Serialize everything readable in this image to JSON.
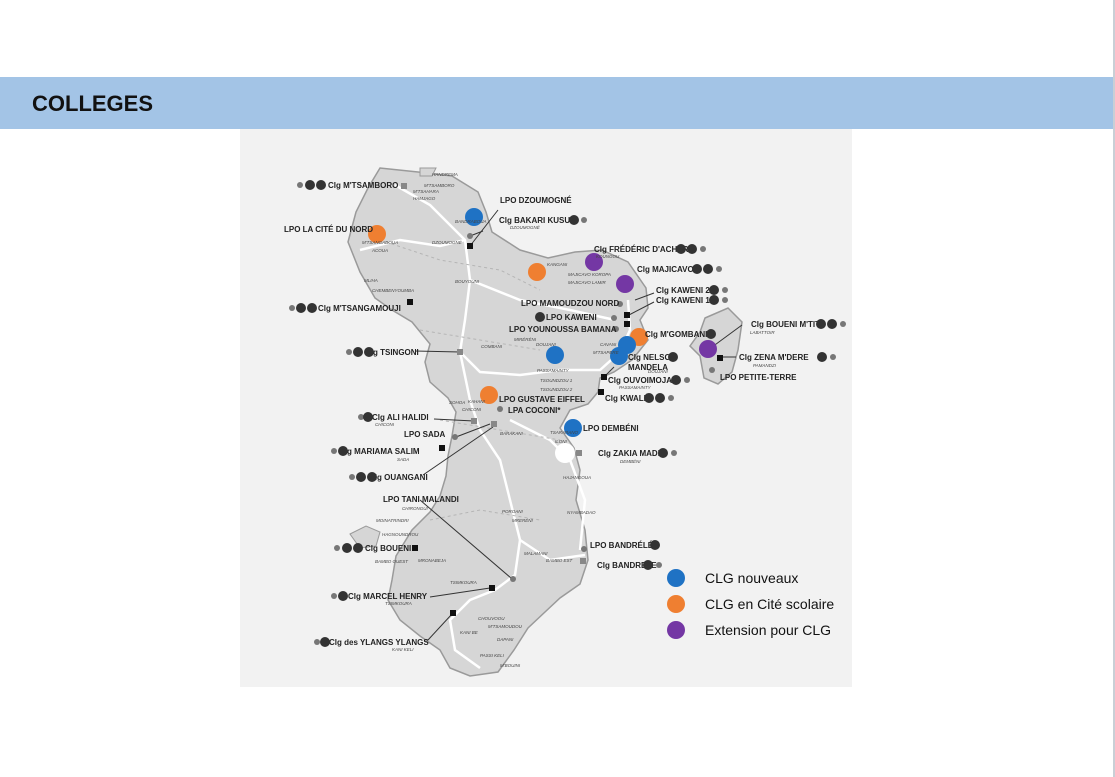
{
  "header": {
    "title": "COLLEGES"
  },
  "legend": [
    {
      "label": "CLG nouveaux",
      "color": "#1f72c4"
    },
    {
      "label": "CLG en Cité scolaire",
      "color": "#ef7f31"
    },
    {
      "label": "Extension pour CLG",
      "color": "#7437a4"
    }
  ],
  "colors": {
    "banner": "#a3c4e6",
    "land": "#dcdcdc",
    "blue": "#1f72c4",
    "orange": "#ef7f31",
    "purple": "#7437a4"
  },
  "map": {
    "labels": {
      "clg_mtsamboro": "Clg M'TSAMBORO",
      "lpo_dzoumogne": "LPO DZOUMOGNÉ",
      "clg_bakari_kusu": "Clg BAKARI KUSU",
      "lpo_cite_du_nord": "LPO LA CITÉ DU NORD",
      "clg_frederic_dachery": "Clg FRÉDÉRIC D'ACHERY",
      "clg_majicavo": "Clg MAJICAVO",
      "clg_kaweni_2": "Clg KAWENI 2",
      "clg_kaweni_1": "Clg KAWENI 1",
      "lpo_mamoudzou_nord": "LPO MAMOUDZOU NORD",
      "lpo_kaweni": "LPO KAWENI",
      "lpo_younoussa_bamana": "LPO YOUNOUSSA BAMANA",
      "clg_mtsangamouji": "Clg M'TSANGAMOUJI",
      "clg_mgombani": "Clg M'GOMBANI",
      "clg_boueni_mtiti": "Clg BOUENI M'TITI",
      "clg_zena_mdere": "Clg ZENA M'DERE",
      "lpo_petite_terre": "LPO PETITE-TERRE",
      "clg_tsingoni": "Clg TSINGONI",
      "clg_nelson": "Clg NELSON",
      "mandela": "MANDELA",
      "clg_ouvoimoja": "Clg OUVOIMOJA",
      "clg_kwale": "Clg KWALÉ",
      "lpo_gustave_eiffel": "LPO GUSTAVE EIFFEL",
      "lpa_coconi": "LPA COCONI*",
      "clg_ali_halidi": "Clg ALI HALIDI",
      "lpo_sada": "LPO SADA",
      "lpo_dembeni": "LPO DEMBÉNI",
      "clg_mariama_salim": "Clg MARIAMA SALIM",
      "clg_zakia_madi": "Clg ZAKIA MADI",
      "clg_ouangani": "Clg OUANGANI",
      "lpo_tani_malandi": "LPO TANI MALANDI",
      "clg_boueni": "Clg BOUENI",
      "lpo_bandrele": "LPO BANDRÉLÉ",
      "clg_bandrele": "Clg BANDRELE",
      "clg_marcel_henry": "Clg MARCEL HENRY",
      "clg_ylangs": "Clg des YLANGS YLANGS"
    },
    "towns": {
      "handrema": "HANDREMA",
      "mtsahara": "M'TSAHARA",
      "hamjago": "HAMJAGO",
      "mtsamboro_t": "M'TSAMBORO",
      "bandraboua": "BANDRABOUA",
      "dzoumogne": "DZOUMOGNÉ",
      "mtsangadoua": "M'TSANGADOUA",
      "acoua": "ACOUA",
      "bouyouni": "BOUYOUNI",
      "mtsangamouji": "M'TSANGAMOUJI",
      "chembenyoumba": "CHEMBENYOUMBA",
      "mliha": "MLIHA",
      "koungou": "KOUNGOU",
      "kangani": "KANGANI",
      "majicavo_koropa": "MAJICAVO KOROPA",
      "majicavo_lamir": "MAJICAVO LAMIR",
      "kaweni": "KAWENI",
      "mamoudzou": "MAMOUDZOU",
      "cavani": "CAVANI",
      "mtsapere": "M'TSAPERE",
      "labattoir": "LABATTOIR",
      "pamandzi": "PAMANDZI",
      "combani": "COMBANI",
      "miréréni": "MIRÉRÉNI",
      "doujani": "DOUJANI",
      "passamainty": "PASSAMAINTY",
      "tsoundzou1": "TSOUNDZOU 1",
      "tsoundzou2": "TSOUNDZOU 2",
      "ouangani": "OUANGANI",
      "chiconi": "CHICONI",
      "sohoa": "SOHOA",
      "kahani": "KAHANI",
      "barakani": "BARAKANI",
      "sada": "SADA",
      "tsararano": "TSARARANO",
      "iloni": "ILONI",
      "dembeni": "DEMBÉNI",
      "hajangoua": "HAJANGOUA",
      "chirongui": "CHIRONGUI",
      "poroani": "POROANI",
      "mreréni": "MRERÉNI",
      "nyambadao": "NYAMBADAO",
      "malamani": "MALAMANI",
      "bambo_est": "BAMBO EST",
      "mronabeja": "MRONABEJA",
      "hagnoundrou": "HAGNOUNDROU",
      "bambo_ouest": "BAMBO OUEST",
      "moinatrindri": "MOINATRINDRI",
      "tsimkoura": "TSIMKOURA",
      "chouvoou": "CHOUVOOU",
      "mtsamoudou": "M'TSAMOUDOU",
      "kani_be": "KANI BE",
      "kani_keli": "KANI KELI",
      "dapani": "DAPANI",
      "passi_keli": "PASSI KELI",
      "mbouini": "M'BOUINI"
    }
  }
}
